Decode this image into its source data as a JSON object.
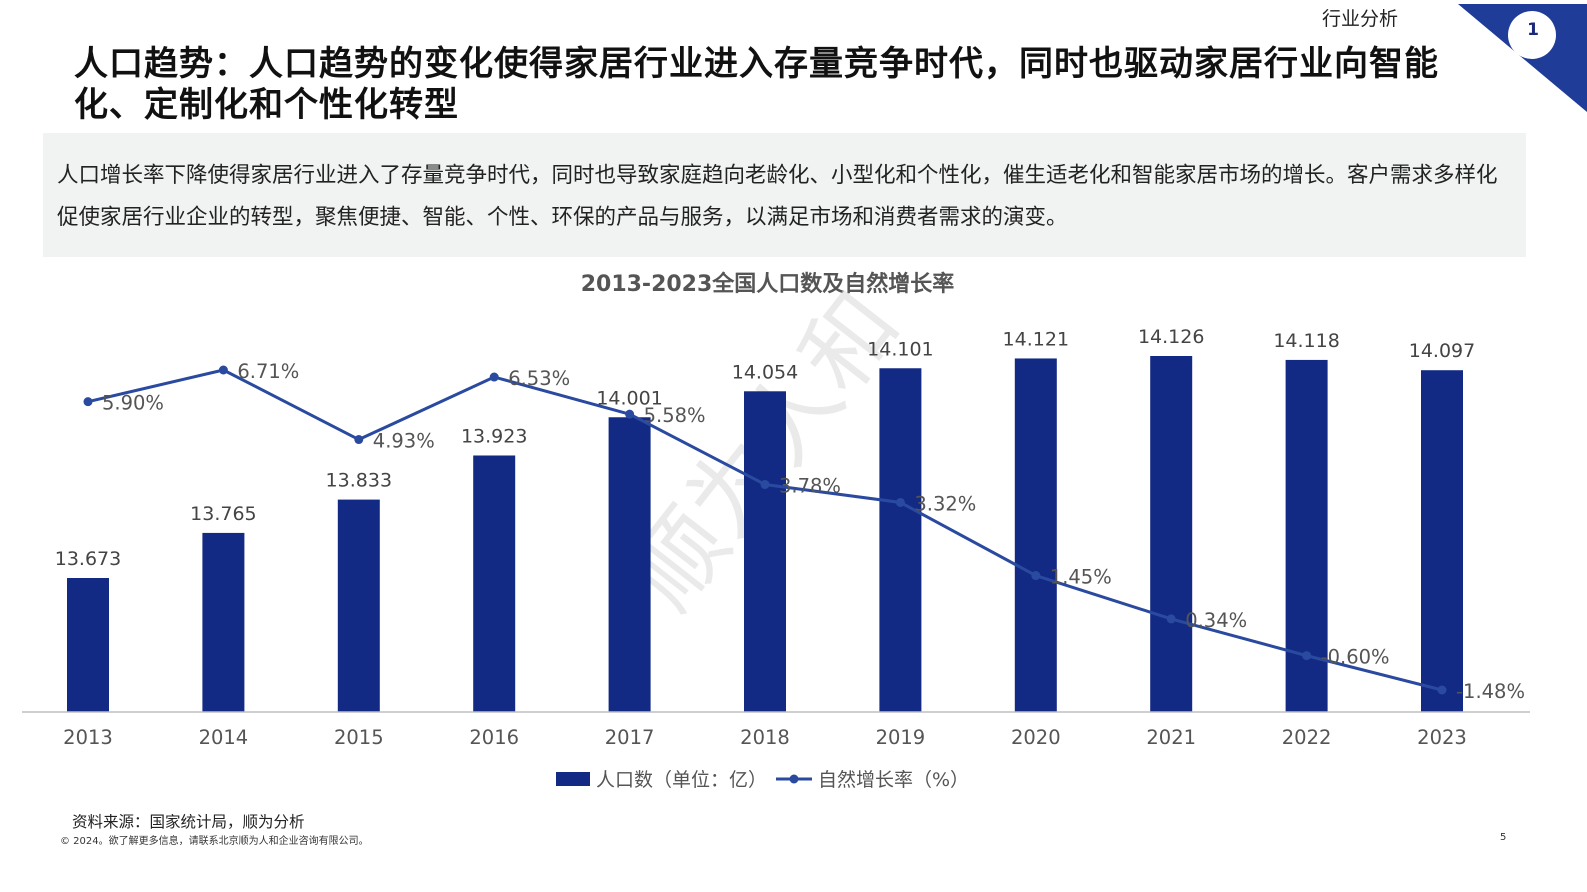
{
  "header": {
    "section_label": "行业分析",
    "corner_number": "1",
    "title": "人口趋势：人口趋势的变化使得家居行业进入存量竞争时代，同时也驱动家居行业向智能化、定制化和个性化转型"
  },
  "summary": "人口增长率下降使得家居行业进入了存量竞争时代，同时也导致家庭趋向老龄化、小型化和个性化，催生适老化和智能家居市场的增长。客户需求多样化促使家居行业企业的转型，聚焦便捷、智能、个性、环保的产品与服务，以满足市场和消费者需求的演变。",
  "colors": {
    "bar": "#132a84",
    "line": "#2a4aa0",
    "accent": "#1f3c99"
  },
  "chart_data": {
    "type": "bar",
    "title": "2013-2023全国人口数及自然增长率",
    "categories": [
      "2013",
      "2014",
      "2015",
      "2016",
      "2017",
      "2018",
      "2019",
      "2020",
      "2021",
      "2022",
      "2023"
    ],
    "series": [
      {
        "name": "人口数（单位：亿）",
        "type": "bar",
        "values": [
          13.673,
          13.765,
          13.833,
          13.923,
          14.001,
          14.054,
          14.101,
          14.121,
          14.126,
          14.118,
          14.097
        ],
        "labels": [
          "13.673",
          "13.765",
          "13.833",
          "13.923",
          "14.001",
          "14.054",
          "14.101",
          "14.121",
          "14.126",
          "14.118",
          "14.097"
        ]
      },
      {
        "name": "自然增长率（%）",
        "type": "line",
        "values": [
          5.9,
          6.71,
          4.93,
          6.53,
          5.58,
          3.78,
          3.32,
          1.45,
          0.34,
          -0.6,
          -1.48
        ],
        "labels": [
          "5.90%",
          "6.71%",
          "4.93%",
          "6.53%",
          "5.58%",
          "3.78%",
          "3.32%",
          "1.45%",
          "0.34%",
          "-0.60%",
          "-1.48%"
        ]
      }
    ],
    "legend_position": "bottom",
    "grid": false,
    "watermark": "顺为人和"
  },
  "footer": {
    "source": "资料来源：国家统计局，顺为分析",
    "copyright": "© 2024。欲了解更多信息，请联系北京顺为人和企业咨询有限公司。",
    "page_number": "5"
  }
}
